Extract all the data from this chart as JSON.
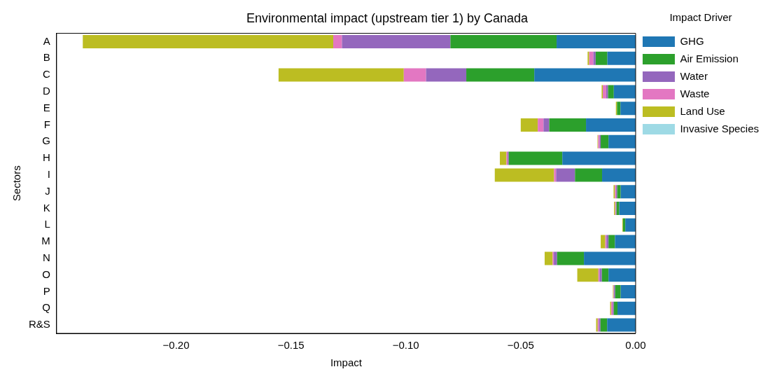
{
  "chart_data": {
    "type": "bar",
    "orientation": "horizontal",
    "stacked": true,
    "title": "Environmental impact (upstream tier 1) by Canada",
    "xlabel": "Impact",
    "ylabel": "Sectors",
    "legend_title": "Impact Driver",
    "legend": "top right",
    "grid": false,
    "categories": [
      "A",
      "B",
      "C",
      "D",
      "E",
      "F",
      "G",
      "H",
      "I",
      "J",
      "K",
      "L",
      "M",
      "N",
      "O",
      "P",
      "Q",
      "R&S"
    ],
    "xlim": [
      -0.252,
      0
    ],
    "xticks": [
      {
        "value": -0.2,
        "label": "−0.20"
      },
      {
        "value": -0.15,
        "label": "−0.15"
      },
      {
        "value": -0.1,
        "label": "−0.10"
      },
      {
        "value": -0.05,
        "label": "−0.05"
      },
      {
        "value": 0,
        "label": "0.00"
      }
    ],
    "series": [
      {
        "name": "GHG",
        "color": "#1f77b4",
        "values": [
          -0.0344,
          -0.0123,
          -0.0441,
          -0.0095,
          -0.0066,
          -0.0216,
          -0.0118,
          -0.0319,
          -0.0146,
          -0.0065,
          -0.0071,
          -0.0045,
          -0.009,
          -0.0225,
          -0.0118,
          -0.0065,
          -0.0079,
          -0.0124
        ]
      },
      {
        "name": "Air Emission",
        "color": "#2ca02c",
        "values": [
          -0.0462,
          -0.0051,
          -0.0296,
          -0.0025,
          -0.0015,
          -0.016,
          -0.0034,
          -0.0233,
          -0.0118,
          -0.0015,
          -0.0012,
          -0.001,
          -0.0028,
          -0.0117,
          -0.0029,
          -0.0024,
          -0.0016,
          -0.0029
        ]
      },
      {
        "name": "Water",
        "color": "#9467bd",
        "values": [
          -0.0472,
          -0.001,
          -0.0175,
          -0.0008,
          0,
          -0.0025,
          -0.0005,
          -0.0005,
          -0.0082,
          -0.0005,
          -0.0003,
          0,
          -0.0009,
          -0.0014,
          -0.001,
          -0.0005,
          -0.0005,
          -0.0007
        ]
      },
      {
        "name": "Waste",
        "color": "#e377c2",
        "values": [
          -0.0038,
          -0.0018,
          -0.0097,
          -0.0015,
          0,
          -0.0025,
          -0.0006,
          -0.0005,
          -0.0009,
          -0.0005,
          -0.0003,
          0,
          -0.0005,
          -0.0005,
          -0.0005,
          -0.0002,
          -0.0006,
          -0.0005
        ]
      },
      {
        "name": "Land Use",
        "color": "#bcbd22",
        "values": [
          -0.109,
          -0.0007,
          -0.0545,
          -0.0005,
          -0.0005,
          -0.0074,
          -0.0003,
          -0.0029,
          -0.0258,
          -0.0006,
          -0.0005,
          -0.0003,
          -0.002,
          -0.0035,
          -0.0092,
          -0.0003,
          -0.0005,
          -0.0007
        ]
      },
      {
        "name": "Invasive Species",
        "color": "#9edae5",
        "values": [
          0,
          0,
          0,
          0,
          0,
          0,
          0,
          0,
          0,
          0,
          0,
          0,
          0,
          0,
          0,
          0,
          0,
          0
        ]
      }
    ]
  }
}
